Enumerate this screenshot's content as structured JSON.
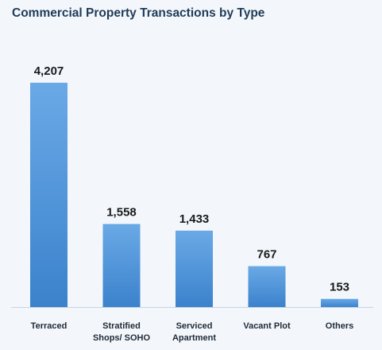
{
  "chart_data": {
    "type": "bar",
    "title": "Commercial Property Transactions by Type",
    "categories": [
      [
        "Terraced"
      ],
      [
        "Stratified",
        "Shops/ SOHO"
      ],
      [
        "Serviced",
        "Apartment"
      ],
      [
        "Vacant Plot"
      ],
      [
        "Others"
      ]
    ],
    "values": [
      4207,
      1558,
      1433,
      767,
      153
    ],
    "value_labels": [
      "4,207",
      "1,558",
      "1,433",
      "767",
      "153"
    ],
    "xlabel": "",
    "ylabel": "",
    "ylim": [
      0,
      4207
    ],
    "grid": false,
    "legend": "none",
    "colors": {
      "bar_top": "#6aa9e6",
      "bar_bottom": "#3b82cc",
      "axis": "#c5d4e3",
      "value_label": "#1a1a1a",
      "category_label": "#1f2a36",
      "background": "#f3f7fc"
    }
  }
}
